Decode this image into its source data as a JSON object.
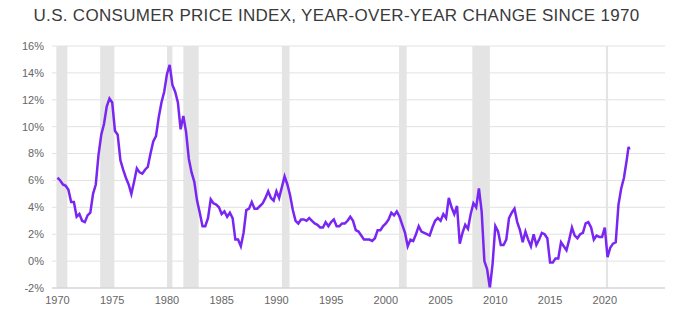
{
  "chart_data": {
    "type": "line",
    "title": "U.S. CONSUMER PRICE INDEX, YEAR-OVER-YEAR CHANGE SINCE 1970",
    "color": "#7a26f2",
    "grid": true,
    "xlim": [
      1969.5,
      2025.5
    ],
    "xticks": [
      1970,
      1975,
      1980,
      1985,
      1990,
      1995,
      2000,
      2005,
      2010,
      2015,
      2020
    ],
    "ylim": [
      -2,
      16
    ],
    "yticks": [
      {
        "value": -2,
        "label": "-2%"
      },
      {
        "value": 0,
        "label": "0%"
      },
      {
        "value": 2,
        "label": "2%"
      },
      {
        "value": 4,
        "label": "4%"
      },
      {
        "value": 6,
        "label": "6%"
      },
      {
        "value": 8,
        "label": "8%"
      },
      {
        "value": 10,
        "label": "10%"
      },
      {
        "value": 12,
        "label": "12%"
      },
      {
        "value": 14,
        "label": "14%"
      },
      {
        "value": 16,
        "label": "16%"
      }
    ],
    "recessions": [
      {
        "start": 1969.9,
        "end": 1970.9
      },
      {
        "start": 1973.9,
        "end": 1975.2
      },
      {
        "start": 1980.0,
        "end": 1980.5
      },
      {
        "start": 1981.5,
        "end": 1982.9
      },
      {
        "start": 1990.5,
        "end": 1991.2
      },
      {
        "start": 2001.2,
        "end": 2001.9
      },
      {
        "start": 2007.9,
        "end": 2009.5
      },
      {
        "start": 2020.1,
        "end": 2020.3
      }
    ],
    "x": [
      1970,
      1970.25,
      1970.5,
      1970.75,
      1971,
      1971.25,
      1971.5,
      1971.75,
      1972,
      1972.25,
      1972.5,
      1972.75,
      1973,
      1973.25,
      1973.5,
      1973.75,
      1974,
      1974.25,
      1974.5,
      1974.75,
      1975,
      1975.25,
      1975.5,
      1975.75,
      1976,
      1976.25,
      1976.5,
      1976.75,
      1977,
      1977.25,
      1977.5,
      1977.75,
      1978,
      1978.25,
      1978.5,
      1978.75,
      1979,
      1979.25,
      1979.5,
      1979.75,
      1980,
      1980.25,
      1980.5,
      1980.75,
      1981,
      1981.25,
      1981.5,
      1981.75,
      1982,
      1982.25,
      1982.5,
      1982.75,
      1983,
      1983.25,
      1983.5,
      1983.75,
      1984,
      1984.25,
      1984.5,
      1984.75,
      1985,
      1985.25,
      1985.5,
      1985.75,
      1986,
      1986.25,
      1986.5,
      1986.75,
      1987,
      1987.25,
      1987.5,
      1987.75,
      1988,
      1988.25,
      1988.5,
      1988.75,
      1989,
      1989.25,
      1989.5,
      1989.75,
      1990,
      1990.25,
      1990.5,
      1990.75,
      1991,
      1991.25,
      1991.5,
      1991.75,
      1992,
      1992.25,
      1992.5,
      1992.75,
      1993,
      1993.25,
      1993.5,
      1993.75,
      1994,
      1994.25,
      1994.5,
      1994.75,
      1995,
      1995.25,
      1995.5,
      1995.75,
      1996,
      1996.25,
      1996.5,
      1996.75,
      1997,
      1997.25,
      1997.5,
      1997.75,
      1998,
      1998.25,
      1998.5,
      1998.75,
      1999,
      1999.25,
      1999.5,
      1999.75,
      2000,
      2000.25,
      2000.5,
      2000.75,
      2001,
      2001.25,
      2001.5,
      2001.75,
      2002,
      2002.25,
      2002.5,
      2002.75,
      2003,
      2003.25,
      2003.5,
      2003.75,
      2004,
      2004.25,
      2004.5,
      2004.75,
      2005,
      2005.25,
      2005.5,
      2005.75,
      2006,
      2006.25,
      2006.5,
      2006.75,
      2007,
      2007.25,
      2007.5,
      2007.75,
      2008,
      2008.25,
      2008.5,
      2008.75,
      2009,
      2009.25,
      2009.5,
      2009.75,
      2010,
      2010.25,
      2010.5,
      2010.75,
      2011,
      2011.25,
      2011.5,
      2011.75,
      2012,
      2012.25,
      2012.5,
      2012.75,
      2013,
      2013.25,
      2013.5,
      2013.75,
      2014,
      2014.25,
      2014.5,
      2014.75,
      2015,
      2015.25,
      2015.5,
      2015.75,
      2016,
      2016.25,
      2016.5,
      2016.75,
      2017,
      2017.25,
      2017.5,
      2017.75,
      2018,
      2018.25,
      2018.5,
      2018.75,
      2019,
      2019.25,
      2019.5,
      2019.75,
      2020,
      2020.25,
      2020.5,
      2020.75,
      2021,
      2021.25,
      2021.5,
      2021.75,
      2022,
      2022.17,
      2022.25
    ],
    "values": [
      6.2,
      6.0,
      5.7,
      5.6,
      5.3,
      4.4,
      4.4,
      3.3,
      3.5,
      3.0,
      2.9,
      3.4,
      3.6,
      5.0,
      5.7,
      7.9,
      9.4,
      10.2,
      11.5,
      12.1,
      11.8,
      9.7,
      9.4,
      7.5,
      6.8,
      6.2,
      5.7,
      5.0,
      5.9,
      6.9,
      6.6,
      6.5,
      6.8,
      7.0,
      8.0,
      8.9,
      9.3,
      10.7,
      11.8,
      12.6,
      13.9,
      14.6,
      13.1,
      12.6,
      11.8,
      9.8,
      10.8,
      9.6,
      7.6,
      6.6,
      5.9,
      4.5,
      3.6,
      2.6,
      2.6,
      3.2,
      4.6,
      4.3,
      4.2,
      4.0,
      3.5,
      3.7,
      3.3,
      3.6,
      3.2,
      1.6,
      1.6,
      1.1,
      2.1,
      3.8,
      3.9,
      4.4,
      3.9,
      3.9,
      4.1,
      4.3,
      4.7,
      5.2,
      4.7,
      4.5,
      5.2,
      4.7,
      5.5,
      6.3,
      5.7,
      4.9,
      3.8,
      3.0,
      2.8,
      3.1,
      3.1,
      3.0,
      3.2,
      3.0,
      2.8,
      2.7,
      2.5,
      2.5,
      2.9,
      2.6,
      2.9,
      3.1,
      2.6,
      2.6,
      2.8,
      2.8,
      3.0,
      3.3,
      3.0,
      2.3,
      2.2,
      1.9,
      1.6,
      1.6,
      1.6,
      1.5,
      1.7,
      2.3,
      2.3,
      2.6,
      2.8,
      3.1,
      3.6,
      3.4,
      3.7,
      3.3,
      2.7,
      2.1,
      1.1,
      1.6,
      1.5,
      2.0,
      2.6,
      2.2,
      2.1,
      2.0,
      1.9,
      2.5,
      3.0,
      3.2,
      3.0,
      3.5,
      3.2,
      4.7,
      4.0,
      3.5,
      4.1,
      1.3,
      2.1,
      2.7,
      2.4,
      3.5,
      4.3,
      4.0,
      5.4,
      3.7,
      0.0,
      -0.6,
      -2.0,
      -0.2,
      2.6,
      2.2,
      1.2,
      1.2,
      1.6,
      3.2,
      3.6,
      3.9,
      2.9,
      2.3,
      1.4,
      2.2,
      1.6,
      1.1,
      2.0,
      1.2,
      1.6,
      2.1,
      2.0,
      1.7,
      -0.1,
      -0.1,
      0.2,
      0.2,
      1.4,
      1.1,
      0.8,
      1.6,
      2.5,
      1.9,
      1.7,
      2.0,
      2.1,
      2.8,
      2.9,
      2.5,
      1.6,
      1.9,
      1.8,
      1.8,
      2.5,
      0.3,
      1.0,
      1.3,
      1.4,
      4.2,
      5.4,
      6.2,
      7.5,
      8.5,
      8.3
    ]
  }
}
